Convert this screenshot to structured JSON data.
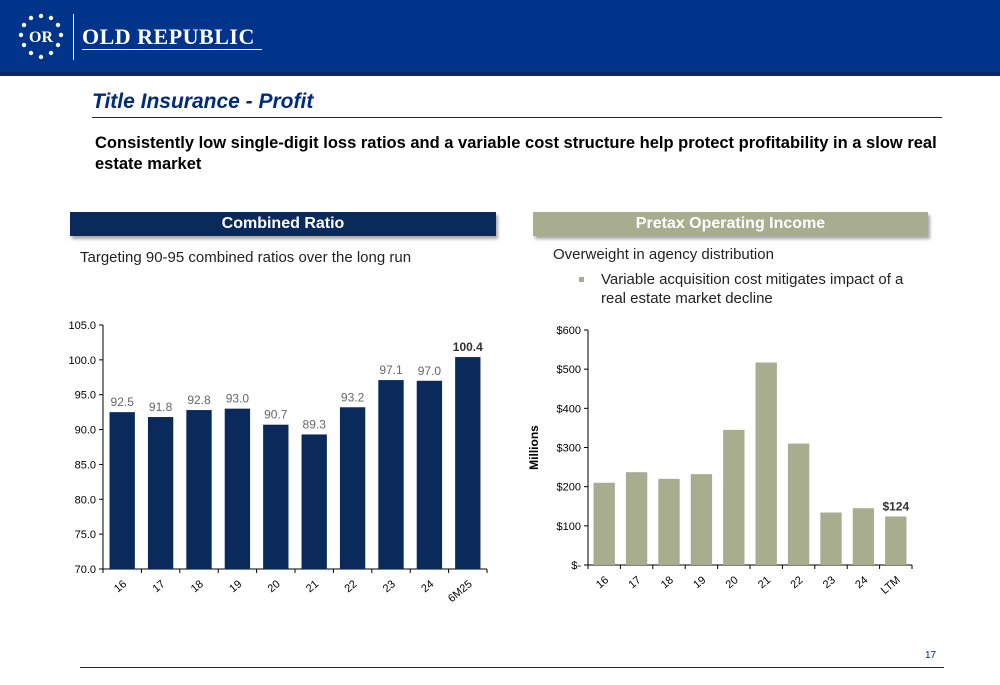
{
  "brand": {
    "name": "OLD REPUBLIC",
    "monogram": "OR",
    "color": "#00338a"
  },
  "title": "Title Insurance - Profit",
  "subtitle": "Consistently low single-digit loss ratios and a variable cost structure help protect profitability in a slow real estate market",
  "left_panel": {
    "heading": "Combined Ratio",
    "note": "Targeting 90-95 combined ratios over the long run"
  },
  "right_panel": {
    "heading": "Pretax Operating Income",
    "note": "Overweight in agency distribution",
    "bullet": "Variable acquisition cost mitigates impact of a real estate market decline"
  },
  "page_number": "17",
  "chart_data": [
    {
      "type": "bar",
      "categories": [
        "16",
        "17",
        "18",
        "19",
        "20",
        "21",
        "22",
        "23",
        "24",
        "6M25"
      ],
      "values": [
        92.5,
        91.8,
        92.8,
        93.0,
        90.7,
        89.3,
        93.2,
        97.1,
        97.0,
        100.4
      ],
      "labels": [
        "92.5",
        "91.8",
        "92.8",
        "93.0",
        "90.7",
        "89.3",
        "93.2",
        "97.1",
        "97.0",
        "100.4"
      ],
      "ylim": [
        70,
        105
      ],
      "yticks": [
        "70.0",
        "75.0",
        "80.0",
        "85.0",
        "90.0",
        "95.0",
        "100.0",
        "105.0"
      ],
      "ytick_values": [
        70,
        75,
        80,
        85,
        90,
        95,
        100,
        105
      ],
      "ylabel": "",
      "color": "#0b2a5c",
      "grid": false
    },
    {
      "type": "bar",
      "categories": [
        "16",
        "17",
        "18",
        "19",
        "20",
        "21",
        "22",
        "23",
        "24",
        "LTM"
      ],
      "values": [
        210,
        237,
        220,
        232,
        345,
        517,
        310,
        134,
        145,
        124
      ],
      "labels": [
        "",
        "",
        "",
        "",
        "",
        "",
        "",
        "",
        "",
        "$124"
      ],
      "ylim": [
        0,
        600
      ],
      "yticks": [
        "$-",
        "$100",
        "$200",
        "$300",
        "$400",
        "$500",
        "$600"
      ],
      "ytick_values": [
        0,
        100,
        200,
        300,
        400,
        500,
        600
      ],
      "ylabel": "Millions",
      "color": "#a8ad8f",
      "grid": false
    }
  ]
}
